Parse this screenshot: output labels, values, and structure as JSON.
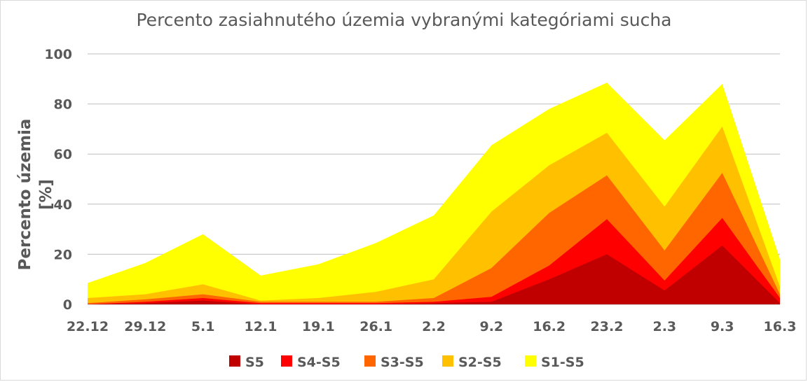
{
  "chart_data": {
    "type": "area",
    "title": "Percento zasiahnutého územia vybranými kategóriami sucha",
    "xlabel": "",
    "ylabel": "Percento územia  [%]",
    "ylim": [
      0,
      100
    ],
    "yticks": [
      "0",
      "20",
      "40",
      "60",
      "80",
      "100"
    ],
    "grid": true,
    "legend_position": "bottom",
    "categories": [
      "22.12",
      "29.12",
      "5.1",
      "12.1",
      "19.1",
      "26.1",
      "2.2",
      "9.2",
      "16.2",
      "23.2",
      "2.3",
      "9.3",
      "16.3"
    ],
    "series": [
      {
        "name": "S1-S5",
        "color": "#FFFF00",
        "values": [
          8.5,
          16.5,
          28,
          11.5,
          16,
          24.5,
          35.5,
          63.5,
          78,
          88.5,
          65.5,
          88,
          18
        ]
      },
      {
        "name": "S2-S5",
        "color": "#FFC000",
        "values": [
          2.5,
          4,
          8,
          1.5,
          2.5,
          5,
          10,
          37,
          55.5,
          68.5,
          39,
          71,
          7
        ]
      },
      {
        "name": "S3-S5",
        "color": "#FF6600",
        "values": [
          0.5,
          2,
          4,
          1,
          1,
          1,
          2.5,
          14.5,
          36.5,
          51.5,
          21.5,
          52.5,
          4
        ]
      },
      {
        "name": "S4-S5",
        "color": "#FF0000",
        "values": [
          0,
          1,
          2.5,
          0.5,
          0.5,
          0.5,
          1,
          3,
          15.5,
          34,
          9.5,
          34.5,
          2.5
        ]
      },
      {
        "name": "S5",
        "color": "#C00000",
        "values": [
          0,
          0.5,
          1.5,
          0,
          0,
          0,
          0.5,
          1,
          10,
          20,
          5.5,
          23.5,
          0.5
        ]
      }
    ],
    "legend_order": [
      "S5",
      "S4-S5",
      "S3-S5",
      "S2-S5",
      "S1-S5"
    ]
  }
}
